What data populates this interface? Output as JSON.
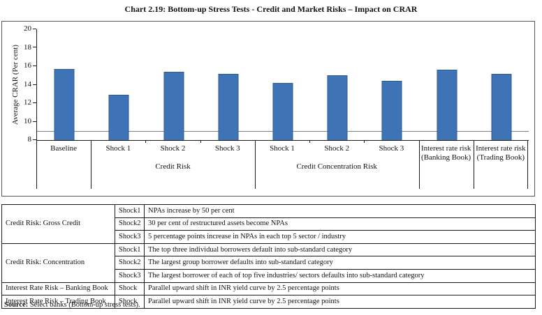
{
  "title": "Chart 2.19: Bottom-up Stress Tests - Credit and Market Risks – Impact on CRAR",
  "chart_data": {
    "type": "bar",
    "title": "Chart 2.19: Bottom-up Stress Tests - Credit and Market Risks – Impact on CRAR",
    "ylabel": "Average CRAR (Per cent)",
    "xlabel": "",
    "ylim": [
      8,
      20
    ],
    "yticks": [
      8,
      10,
      12,
      14,
      16,
      18,
      20
    ],
    "grid": "off",
    "legend": "none",
    "reference_line": {
      "value": 9,
      "color": "#7f7f7f"
    },
    "bar_color": "#3e73b5",
    "bar_border_color": "#2e5a94",
    "categories": [
      "Baseline",
      "Shock 1",
      "Shock 2",
      "Shock 3",
      "Shock 1",
      "Shock 2",
      "Shock 3",
      "Interest rate risk (Banking Book)",
      "Interest rate risk (Trading Book)"
    ],
    "values": [
      15.7,
      12.9,
      15.4,
      15.2,
      14.2,
      15.0,
      14.4,
      15.6,
      15.2
    ],
    "groups": [
      {
        "label": "Credit Risk",
        "start": 1,
        "span": 3
      },
      {
        "label": "Credit Concentration Risk",
        "start": 4,
        "span": 3
      }
    ],
    "separators": {
      "major_at": [
        0,
        1,
        4,
        7,
        8,
        9
      ],
      "minor_at": [
        2,
        3,
        5,
        6
      ]
    }
  },
  "table": {
    "rows": [
      {
        "category": "Credit Risk: Gross Credit",
        "shock": "Shock1",
        "description": "NPAs increase by 50 per cent"
      },
      {
        "shock": "Shock2",
        "description": "30 per cent of restructured assets become NPAs"
      },
      {
        "shock": "Shock3",
        "description": "5 percentage points increase in NPAs in each top 5 sector / industry"
      },
      {
        "category": "Credit Risk: Concentration",
        "shock": "Shock1",
        "description": "The top three individual borrowers default into sub-standard category"
      },
      {
        "shock": "Shock2",
        "description": "The largest group borrower defaults into sub-standard category"
      },
      {
        "shock": "Shock3",
        "description": "The largest borrower of each of top five industries/ sectors defaults into sub-standard category"
      },
      {
        "category": "Interest Rate Risk – Banking Book",
        "shock": "Shock",
        "description": "Parallel upward shift in INR yield curve by 2.5 percentage points"
      },
      {
        "category": "Interest Rate Risk – Trading Book",
        "shock": "Shock",
        "description": "Parallel upward shift in INR yield curve by 2.5 percentage points"
      }
    ]
  },
  "source": {
    "label": "Source:",
    "text": "Select banks (Bottom-up stress tests)."
  }
}
